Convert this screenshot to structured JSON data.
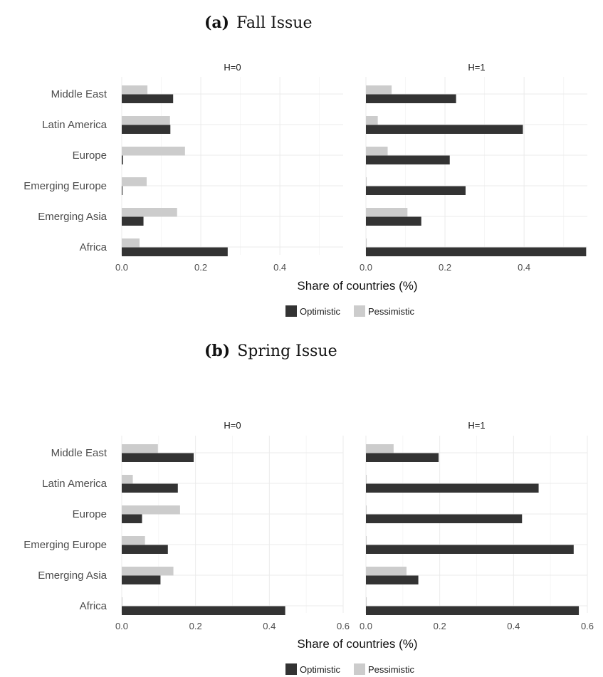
{
  "colors": {
    "optimistic": "#333333",
    "pessimistic": "#cccccc"
  },
  "chart_data": [
    {
      "type": "bar",
      "orientation": "horizontal",
      "caption_letter": "(a)",
      "caption_title": "Fall Issue",
      "xlabel": "Share of countries (%)",
      "categories": [
        "Middle East",
        "Latin America",
        "Europe",
        "Emerging Europe",
        "Emerging Asia",
        "Africa"
      ],
      "legend": [
        "Optimistic",
        "Pessimistic"
      ],
      "legend_position": "bottom",
      "grid": true,
      "panels": [
        {
          "label": "H=0",
          "xlim": [
            0,
            0.56
          ],
          "ticks": [
            "0.0",
            "0.2",
            "0.4"
          ],
          "tick_values": [
            0,
            0.2,
            0.4
          ],
          "series": [
            {
              "name": "Optimistic",
              "values": [
                0.13,
                0.123,
                0.003,
                0.002,
                0.055,
                0.268
              ]
            },
            {
              "name": "Pessimistic",
              "values": [
                0.065,
                0.122,
                0.16,
                0.063,
                0.14,
                0.045
              ]
            }
          ]
        },
        {
          "label": "H=1",
          "xlim": [
            0,
            0.56
          ],
          "ticks": [
            "0.0",
            "0.2",
            "0.4"
          ],
          "tick_values": [
            0,
            0.2,
            0.4
          ],
          "series": [
            {
              "name": "Optimistic",
              "values": [
                0.228,
                0.397,
                0.212,
                0.252,
                0.14,
                0.557
              ]
            },
            {
              "name": "Pessimistic",
              "values": [
                0.065,
                0.03,
                0.055,
                0.002,
                0.105,
                0.002
              ]
            }
          ]
        }
      ]
    },
    {
      "type": "bar",
      "orientation": "horizontal",
      "caption_letter": "(b)",
      "caption_title": "Spring Issue",
      "xlabel": "Share of countries (%)",
      "categories": [
        "Middle East",
        "Latin America",
        "Europe",
        "Emerging Europe",
        "Emerging Asia",
        "Africa"
      ],
      "legend": [
        "Optimistic",
        "Pessimistic"
      ],
      "legend_position": "bottom",
      "grid": true,
      "panels": [
        {
          "label": "H=0",
          "xlim": [
            0,
            0.6
          ],
          "ticks": [
            "0.0",
            "0.2",
            "0.4",
            "0.6"
          ],
          "tick_values": [
            0,
            0.2,
            0.4,
            0.6
          ],
          "series": [
            {
              "name": "Optimistic",
              "values": [
                0.195,
                0.152,
                0.055,
                0.125,
                0.105,
                0.443
              ]
            },
            {
              "name": "Pessimistic",
              "values": [
                0.098,
                0.03,
                0.158,
                0.063,
                0.14,
                0.002
              ]
            }
          ]
        },
        {
          "label": "H=1",
          "xlim": [
            0,
            0.6
          ],
          "ticks": [
            "0.0",
            "0.2",
            "0.4",
            "0.6"
          ],
          "tick_values": [
            0,
            0.2,
            0.4,
            0.6
          ],
          "series": [
            {
              "name": "Optimistic",
              "values": [
                0.197,
                0.468,
                0.423,
                0.563,
                0.142,
                0.577
              ]
            },
            {
              "name": "Pessimistic",
              "values": [
                0.075,
                0.002,
                0.002,
                0.002,
                0.11,
                0.002
              ]
            }
          ]
        }
      ]
    }
  ]
}
